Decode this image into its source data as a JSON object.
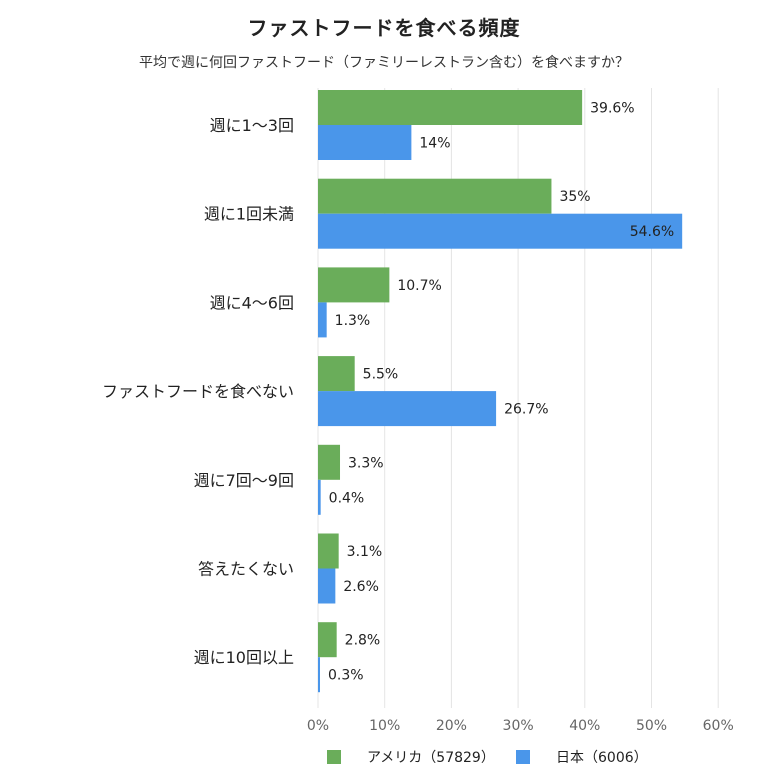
{
  "title": "ファストフードを食べる頻度",
  "subtitle": "平均で週に何回ファストフード（ファミリーレストラン含む）を食べますか？",
  "colors": {
    "series1": "#6aad5a",
    "series2": "#4a96ea",
    "grid": "#e4e4e4"
  },
  "chart_data": {
    "type": "bar",
    "orientation": "horizontal",
    "categories": [
      "週に1〜3回",
      "週に1回未満",
      "週に4〜6回",
      "ファストフードを食べない",
      "週に7回〜9回",
      "答えたくない",
      "週に10回以上"
    ],
    "series": [
      {
        "name": "アメリカ（57829）",
        "values": [
          39.6,
          35,
          10.7,
          5.5,
          3.3,
          3.1,
          2.8
        ],
        "labels": [
          "39.6%",
          "35%",
          "10.7%",
          "5.5%",
          "3.3%",
          "3.1%",
          "2.8%"
        ]
      },
      {
        "name": "日本（6006）",
        "values": [
          14,
          54.6,
          1.3,
          26.7,
          0.4,
          2.6,
          0.3
        ],
        "labels": [
          "14%",
          "54.6%",
          "1.3%",
          "26.7%",
          "0.4%",
          "2.6%",
          "0.3%"
        ]
      }
    ],
    "x_ticks": [
      "0%",
      "10%",
      "20%",
      "30%",
      "40%",
      "50%",
      "60%"
    ],
    "xlim": [
      0,
      60
    ],
    "grid": true,
    "legend_position": "bottom"
  }
}
